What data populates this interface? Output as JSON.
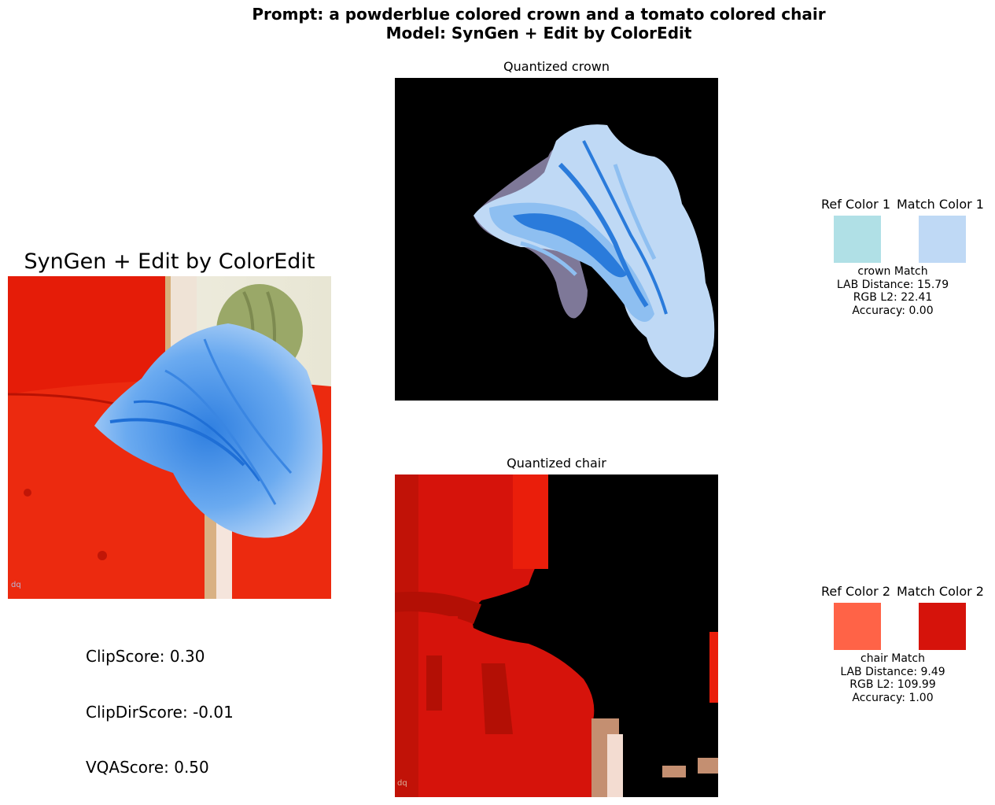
{
  "figure": {
    "prompt_line": "Prompt: a powderblue colored crown and a tomato colored chair",
    "model_line": "Model: SynGen + Edit by ColorEdit"
  },
  "main_panel": {
    "title": "SynGen + Edit by ColorEdit",
    "image_alt": "Generated image: a blue feathery crown resting on a red chair",
    "scores": {
      "clip": "ClipScore: 0.30",
      "clip_dir": "ClipDirScore: -0.01",
      "vqa": "VQAScore: 0.50"
    }
  },
  "objects": [
    {
      "quantized_title": "Quantized crown",
      "ref_label": "Ref Color 1",
      "match_label": "Match Color 1",
      "ref_color": "#B0E0E6",
      "match_color": "#BFD9F5",
      "match_name": "crown Match",
      "lab_distance": "LAB Distance: 15.79",
      "rgb_l2": "RGB L2: 22.41",
      "accuracy": "Accuracy: 0.00"
    },
    {
      "quantized_title": "Quantized chair",
      "ref_label": "Ref Color 2",
      "match_label": "Match Color 2",
      "ref_color": "#FF6347",
      "match_color": "#D6130B",
      "match_name": "chair Match",
      "lab_distance": "LAB Distance: 9.49",
      "rgb_l2": "RGB L2: 109.99",
      "accuracy": "Accuracy: 1.00"
    }
  ]
}
